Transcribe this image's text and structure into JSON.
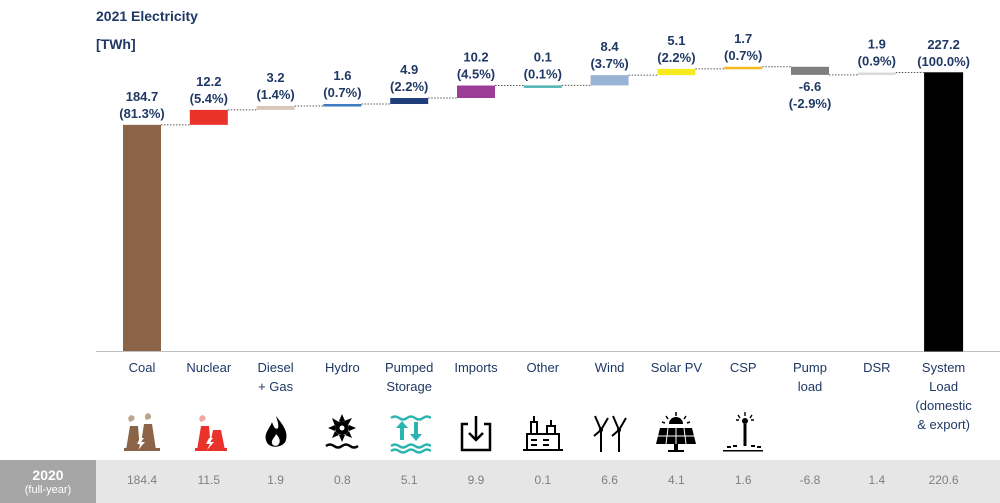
{
  "title": "2021 Electricity",
  "unit": "[TWh]",
  "chart_data": {
    "type": "bar",
    "subtype": "waterfall",
    "title": "2021 Electricity",
    "ylabel": "[TWh]",
    "categories": [
      "Coal",
      "Nuclear",
      "Diesel\n+ Gas",
      "Hydro",
      "Pumped\nStorage",
      "Imports",
      "Other",
      "Wind",
      "Solar PV",
      "CSP",
      "Pump\nload",
      "DSR",
      "System\nLoad\n(domestic\n& export)"
    ],
    "values": [
      184.7,
      12.2,
      3.2,
      1.6,
      4.9,
      10.2,
      0.1,
      8.4,
      5.1,
      1.7,
      -6.6,
      1.9,
      227.2
    ],
    "percent_labels": [
      "(81.3%)",
      "(5.4%)",
      "(1.4%)",
      "(0.7%)",
      "(2.2%)",
      "(4.5%)",
      "(0.1%)",
      "(3.7%)",
      "(2.2%)",
      "(0.7%)",
      "(-2.9%)",
      "(0.9%)",
      "(100.0%)"
    ],
    "value_labels": [
      "184.7",
      "12.2",
      "3.2",
      "1.6",
      "4.9",
      "10.2",
      "0.1",
      "8.4",
      "5.1",
      "1.7",
      "-6.6",
      "1.9",
      "227.2"
    ],
    "total_index": 12,
    "colors": [
      "#8b6347",
      "#e8322a",
      "#d9c8b8",
      "#3b7bbf",
      "#1f3e7a",
      "#9b3c96",
      "#4fb3b3",
      "#98b4d4",
      "#f5eb1e",
      "#f5b81e",
      "#7f7f7f",
      "#d9d9d9",
      "#000000"
    ],
    "grid": false,
    "comparison_row": {
      "label": "2020",
      "sublabel": "(full-year)",
      "values": [
        "184.4",
        "11.5",
        "1.9",
        "0.8",
        "5.1",
        "9.9",
        "0.1",
        "6.6",
        "4.1",
        "1.6",
        "-6.8",
        "1.4",
        "220.6"
      ]
    }
  },
  "icons": [
    "power-plant-icon",
    "nuclear-plant-icon",
    "flame-icon",
    "water-turbine-icon",
    "pumped-storage-icon",
    "import-icon",
    "industry-icon",
    "wind-turbine-icon",
    "solar-panel-icon",
    "csp-tower-icon"
  ]
}
